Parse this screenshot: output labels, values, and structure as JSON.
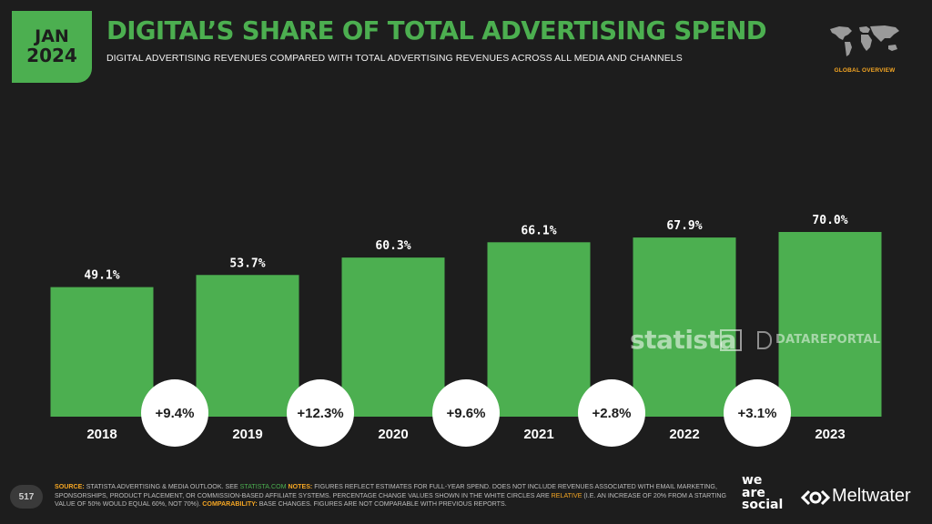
{
  "header": {
    "month": "JAN",
    "year": "2024",
    "title": "DIGITAL’S SHARE OF TOTAL ADVERTISING SPEND",
    "subtitle": "DIGITAL ADVERTISING REVENUES COMPARED WITH TOTAL ADVERTISING REVENUES ACROSS ALL MEDIA AND CHANNELS",
    "region_label": "GLOBAL OVERVIEW",
    "map_icon": "world-map-icon"
  },
  "chart_data": {
    "type": "bar",
    "categories": [
      "2018",
      "2019",
      "2020",
      "2021",
      "2022",
      "2023"
    ],
    "values": [
      49.1,
      53.7,
      60.3,
      66.1,
      67.9,
      70.0
    ],
    "value_labels": [
      "49.1%",
      "53.7%",
      "60.3%",
      "66.1%",
      "67.9%",
      "70.0%"
    ],
    "changes": [
      "+9.4%",
      "+12.3%",
      "+9.6%",
      "+2.8%",
      "+3.1%"
    ],
    "title": "",
    "xlabel": "",
    "ylabel": "",
    "ylim": [
      0,
      100
    ],
    "grid": false,
    "colors": {
      "bar": "#4caf50",
      "bubble": "#ffffff"
    }
  },
  "watermarks": {
    "statista": "statista",
    "datareportal": "DATAREPORTAL"
  },
  "footer": {
    "page_number": "517",
    "source_heading": "SOURCE:",
    "source_text": " STATISTA ADVERTISING & MEDIA OUTLOOK. SEE ",
    "source_link": "STATISTA.COM",
    "notes_heading": " NOTES:",
    "notes_text": " FIGURES REFLECT ESTIMATES FOR FULL-YEAR SPEND. DOES NOT INCLUDE REVENUES ASSOCIATED WITH EMAIL MARKETING, SPONSORSHIPS, PRODUCT PLACEMENT, OR COMMISSION-BASED AFFILIATE SYSTEMS. PERCENTAGE CHANGE VALUES SHOWN IN THE WHITE CIRCLES ARE ",
    "relative_word": "RELATIVE",
    "notes_text_2": " (I.E. AN INCREASE OF 20% FROM A STARTING VALUE OF 50% WOULD EQUAL 60%, NOT 70%).",
    "comparability_heading": " COMPARABILITY:",
    "comparability_text": " BASE CHANGES. FIGURES ARE NOT COMPARABLE WITH PREVIOUS REPORTS.",
    "logo_we": "we",
    "logo_are": "are",
    "logo_social": "social",
    "logo_meltwater": "Meltwater"
  },
  "colors": {
    "background": "#1d1d1d",
    "accent": "#4caf50",
    "highlight": "#f5a623"
  }
}
